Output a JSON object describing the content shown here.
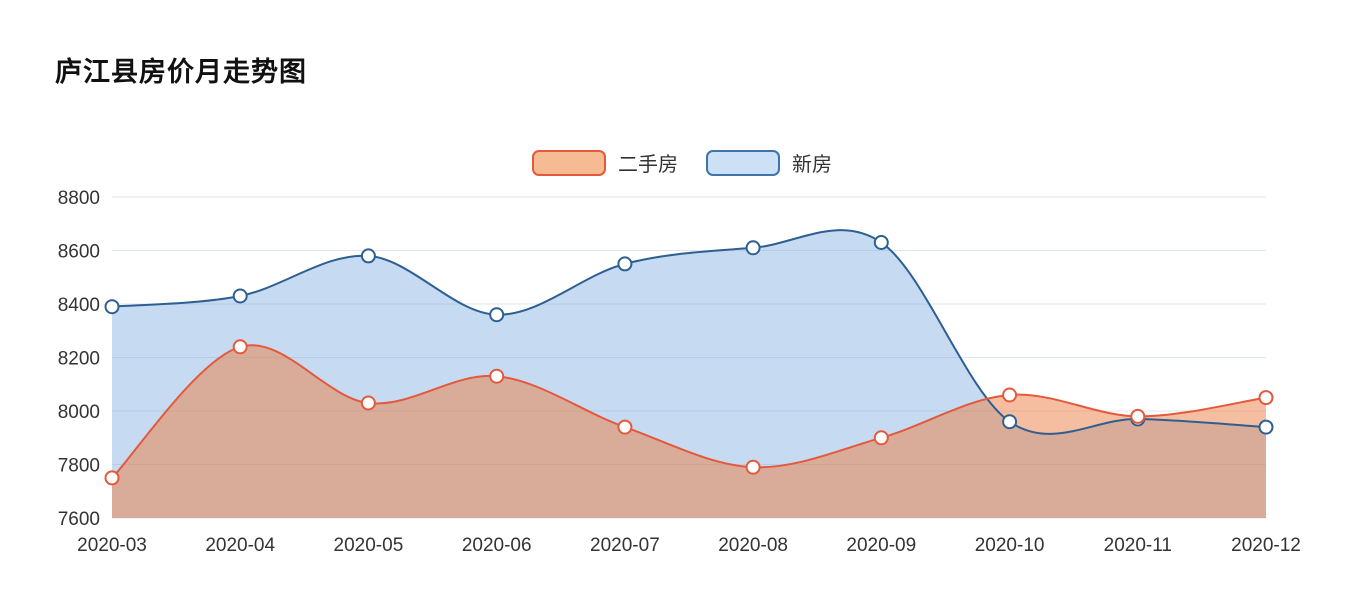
{
  "page": {
    "title": "庐江县房价月走势图"
  },
  "legend": [
    {
      "label": "二手房",
      "border_color": "#e4593c",
      "fill_color": "#f6bb93"
    },
    {
      "label": "新房",
      "border_color": "#3d74ab",
      "fill_color": "#cde1f6"
    }
  ],
  "chart_data": {
    "type": "line",
    "title": "庐江县房价月走势图",
    "x": [
      "2020-03",
      "2020-04",
      "2020-05",
      "2020-06",
      "2020-07",
      "2020-08",
      "2020-09",
      "2020-10",
      "2020-11",
      "2020-12"
    ],
    "series": [
      {
        "name": "二手房",
        "color": "#e4593c",
        "area_color": "rgba(235,125,65,0.50)",
        "values": [
          7750,
          8240,
          8030,
          8130,
          7940,
          7790,
          7900,
          8060,
          7980,
          8050
        ]
      },
      {
        "name": "新房",
        "color": "#2e5f91",
        "area_color": "rgba(120,170,225,0.42)",
        "values": [
          8390,
          8430,
          8580,
          8360,
          8550,
          8610,
          8630,
          7960,
          7970,
          7940
        ]
      }
    ],
    "ylim": [
      7600,
      8800
    ],
    "yticks": [
      7600,
      7800,
      8000,
      8200,
      8400,
      8600,
      8800
    ],
    "ylabel": "",
    "xlabel": "",
    "grid": true,
    "smooth": true,
    "legend_position": "top-center",
    "grid_color": "#e0e6f1",
    "marker_style": "hollow-circle"
  }
}
